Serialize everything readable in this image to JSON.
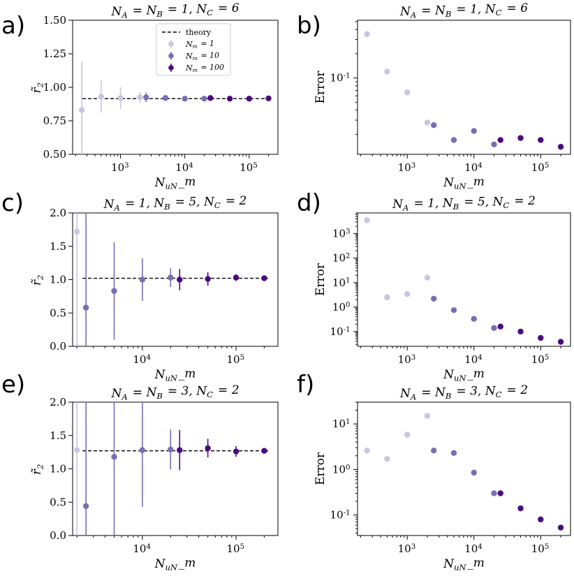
{
  "colors": {
    "nm1": "#cbc5e2",
    "nm10": "#7b6db3",
    "nm100": "#4a0b7f",
    "theory": "#000000"
  },
  "chart_data": [
    {
      "panel": "a)",
      "type": "scatter",
      "title": "N_A = N_B = 1, N_C = 6",
      "xlabel": "N_u N_m",
      "ylabel": "r̃_2",
      "xscale": "log",
      "xlim": [
        180,
        280000
      ],
      "ylim": [
        0.5,
        1.5
      ],
      "yticks": [
        "0.50",
        "0.75",
        "1.00",
        "1.25",
        "1.50"
      ],
      "xticks": [
        "10^3",
        "10^4",
        "10^5"
      ],
      "theory": 0.915,
      "legend": {
        "position": "top-center",
        "entries": [
          "theory",
          "N_m = 1",
          "N_m = 10",
          "N_m = 100"
        ]
      },
      "series": [
        {
          "name": "N_m = 1",
          "x": [
            250,
            500,
            1000,
            2000
          ],
          "y": [
            0.83,
            0.93,
            0.92,
            0.925
          ],
          "err": [
            0.36,
            0.12,
            0.08,
            0.04
          ]
        },
        {
          "name": "N_m = 10",
          "x": [
            2500,
            5000,
            10000,
            20000
          ],
          "y": [
            0.925,
            0.92,
            0.915,
            0.915
          ],
          "err": [
            0.035,
            0.02,
            0.018,
            0.015
          ]
        },
        {
          "name": "N_m = 100",
          "x": [
            25000,
            50000,
            100000,
            200000
          ],
          "y": [
            0.92,
            0.915,
            0.915,
            0.917
          ],
          "err": [
            0.015,
            0.012,
            0.01,
            0.008
          ]
        }
      ]
    },
    {
      "panel": "b)",
      "type": "scatter",
      "title": "N_A = N_B = 1, N_C = 6",
      "xlabel": "N_u N_m",
      "ylabel": "Error",
      "xscale": "log",
      "yscale": "log",
      "xlim": [
        180,
        280000
      ],
      "ylim": [
        0.0113,
        0.52
      ],
      "yticks": [
        "10^-1"
      ],
      "xticks": [
        "10^3",
        "10^4",
        "10^5"
      ],
      "series": [
        {
          "name": "N_m = 1",
          "x": [
            250,
            500,
            1000,
            2000
          ],
          "y": [
            0.35,
            0.12,
            0.066,
            0.028
          ]
        },
        {
          "name": "N_m = 10",
          "x": [
            2500,
            5000,
            10000,
            20000
          ],
          "y": [
            0.026,
            0.017,
            0.022,
            0.015
          ]
        },
        {
          "name": "N_m = 100",
          "x": [
            25000,
            50000,
            100000,
            200000
          ],
          "y": [
            0.017,
            0.018,
            0.017,
            0.014
          ]
        }
      ]
    },
    {
      "panel": "c)",
      "type": "scatter",
      "title": "N_A = 1, N_B = 5, N_C = 2",
      "xlabel": "N_u N_m",
      "ylabel": "r̃_2",
      "xscale": "log",
      "xlim": [
        1800,
        280000
      ],
      "ylim": [
        0.0,
        2.0
      ],
      "yticks": [
        "0.0",
        "0.5",
        "1.0",
        "1.5",
        "2.0"
      ],
      "xticks": [
        "10^4",
        "10^5"
      ],
      "theory": 1.02,
      "series": [
        {
          "name": "N_m = 1",
          "x": [
            2000
          ],
          "y": [
            1.72
          ],
          "err": [
            2.0
          ]
        },
        {
          "name": "N_m = 10",
          "x": [
            2500,
            5000,
            10000,
            20000
          ],
          "y": [
            0.58,
            0.83,
            1.0,
            1.03
          ],
          "err": [
            1.7,
            0.73,
            0.32,
            0.14
          ]
        },
        {
          "name": "N_m = 100",
          "x": [
            25000,
            50000,
            100000,
            200000
          ],
          "y": [
            1.0,
            1.01,
            1.03,
            1.02
          ],
          "err": [
            0.16,
            0.1,
            0.05,
            0.03
          ]
        }
      ]
    },
    {
      "panel": "d)",
      "type": "scatter",
      "title": "N_A = 1, N_B = 5, N_C = 2",
      "xlabel": "N_u N_m",
      "ylabel": "Error",
      "xscale": "log",
      "yscale": "log",
      "xlim": [
        180,
        280000
      ],
      "ylim": [
        0.025,
        7000
      ],
      "yticks": [
        "10^-1",
        "10^0",
        "10^1",
        "10^2",
        "10^3"
      ],
      "xticks": [
        "10^3",
        "10^4",
        "10^5"
      ],
      "series": [
        {
          "name": "N_m = 1",
          "x": [
            250,
            500,
            1000,
            2000
          ],
          "y": [
            3500,
            2.5,
            3.4,
            16
          ]
        },
        {
          "name": "N_m = 10",
          "x": [
            2500,
            5000,
            10000,
            20000
          ],
          "y": [
            2.2,
            0.75,
            0.33,
            0.14
          ]
        },
        {
          "name": "N_m = 100",
          "x": [
            25000,
            50000,
            100000,
            200000
          ],
          "y": [
            0.16,
            0.1,
            0.055,
            0.038
          ]
        }
      ]
    },
    {
      "panel": "e)",
      "type": "scatter",
      "title": "N_A = N_B = 3, N_C = 2",
      "xlabel": "N_u N_m",
      "ylabel": "r̃_2",
      "xscale": "log",
      "xlim": [
        1800,
        280000
      ],
      "ylim": [
        0.0,
        2.0
      ],
      "yticks": [
        "0.0",
        "0.5",
        "1.0",
        "1.5",
        "2.0"
      ],
      "xticks": [
        "10^4",
        "10^5"
      ],
      "theory": 1.27,
      "series": [
        {
          "name": "N_m = 1",
          "x": [
            2000
          ],
          "y": [
            1.28
          ],
          "err": [
            2.0
          ]
        },
        {
          "name": "N_m = 10",
          "x": [
            2500,
            5000,
            10000,
            20000
          ],
          "y": [
            0.44,
            1.18,
            1.28,
            1.29
          ],
          "err": [
            2.0,
            1.3,
            0.85,
            0.3
          ]
        },
        {
          "name": "N_m = 100",
          "x": [
            25000,
            50000,
            100000,
            200000
          ],
          "y": [
            1.28,
            1.31,
            1.26,
            1.27
          ],
          "err": [
            0.3,
            0.14,
            0.08,
            0.04
          ]
        }
      ]
    },
    {
      "panel": "f)",
      "type": "scatter",
      "title": "N_A = N_B = 3, N_C = 2",
      "xlabel": "N_u N_m",
      "ylabel": "Error",
      "xscale": "log",
      "yscale": "log",
      "xlim": [
        180,
        280000
      ],
      "ylim": [
        0.0355,
        30
      ],
      "yticks": [
        "10^-1",
        "10^0",
        "10^1"
      ],
      "xticks": [
        "10^3",
        "10^4",
        "10^5"
      ],
      "series": [
        {
          "name": "N_m = 1",
          "x": [
            250,
            500,
            1000,
            2000
          ],
          "y": [
            2.6,
            1.7,
            5.8,
            15
          ]
        },
        {
          "name": "N_m = 10",
          "x": [
            2500,
            5000,
            10000,
            20000
          ],
          "y": [
            2.6,
            2.3,
            0.85,
            0.3
          ]
        },
        {
          "name": "N_m = 100",
          "x": [
            25000,
            50000,
            100000,
            200000
          ],
          "y": [
            0.3,
            0.14,
            0.08,
            0.053
          ]
        }
      ]
    }
  ]
}
